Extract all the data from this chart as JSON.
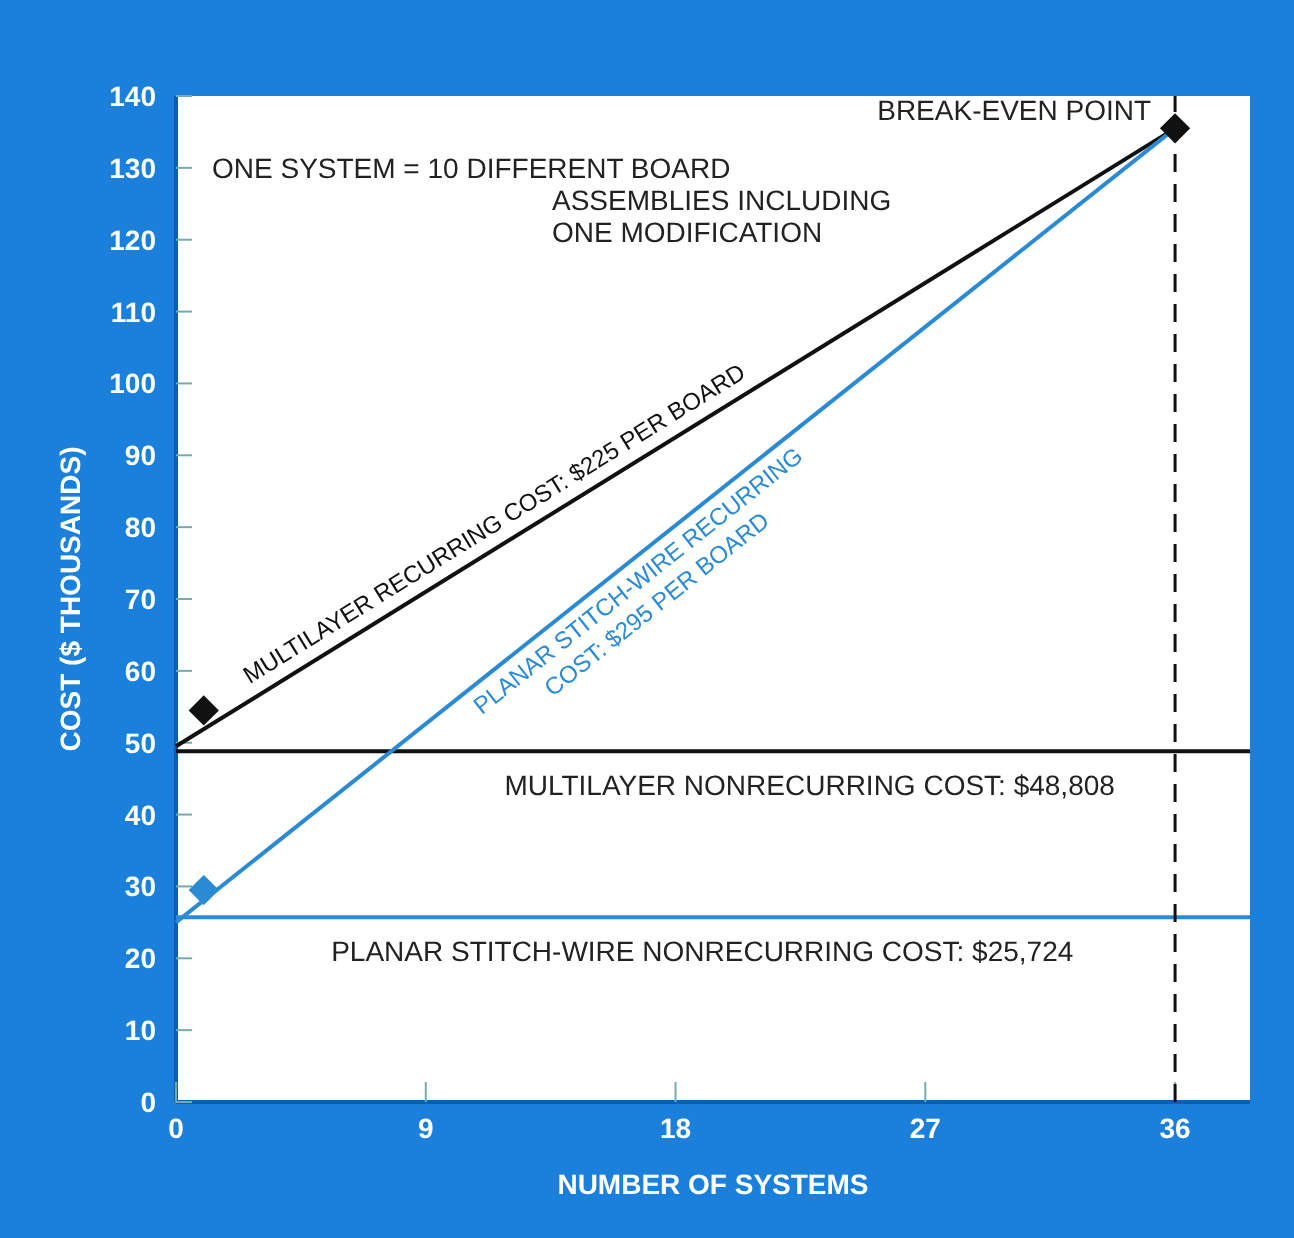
{
  "chart_data": {
    "type": "line",
    "xlabel": "NUMBER OF SYSTEMS",
    "ylabel": "COST ($ THOUSANDS)",
    "xlim": [
      0,
      38.7
    ],
    "xticks": [
      0,
      9,
      18,
      27,
      36
    ],
    "ylim": [
      0,
      140
    ],
    "yticks": [
      0,
      10,
      20,
      30,
      40,
      50,
      60,
      70,
      80,
      90,
      100,
      110,
      120,
      130,
      140
    ],
    "grid": false,
    "legend": false,
    "series": [
      {
        "name": "MULTILAYER RECURRING COST: $225 PER BOARD",
        "color": "#111111",
        "x": [
          0,
          36
        ],
        "values": [
          49.5,
          135.5
        ]
      },
      {
        "name": "PLANAR STITCH-WIRE RECURRING COST: $295 PER BOARD",
        "color": "#2a8ad4",
        "x": [
          0,
          36
        ],
        "values": [
          25,
          135.5
        ]
      },
      {
        "type": "scatter",
        "color": "#111111",
        "x": [
          1,
          36
        ],
        "values": [
          54.5,
          135.5
        ],
        "marker": "diamond"
      },
      {
        "type": "scatter",
        "color": "#2a8ad4",
        "x": [
          1
        ],
        "values": [
          29.5
        ],
        "marker": "diamond"
      }
    ],
    "ref_lines": [
      {
        "axis": "y",
        "value": 48.808,
        "label": "MULTILAYER NONRECURRING COST: $48,808",
        "color": "#111111",
        "line_style": "solid"
      },
      {
        "axis": "y",
        "value": 25.724,
        "label": "PLANAR STITCH-WIRE NONRECURRING COST: $25,724",
        "color": "#2a8ad4",
        "line_style": "solid"
      },
      {
        "axis": "x",
        "value": 36,
        "color": "#111111",
        "line_style": "dashed"
      }
    ],
    "annotations": [
      "ONE SYSTEM = 10 DIFFERENT BOARD ASSEMBLIES INCLUDING ONE MODIFICATION",
      {
        "text": "BREAK-EVEN POINT",
        "x": 36,
        "y": 135.5
      }
    ]
  }
}
